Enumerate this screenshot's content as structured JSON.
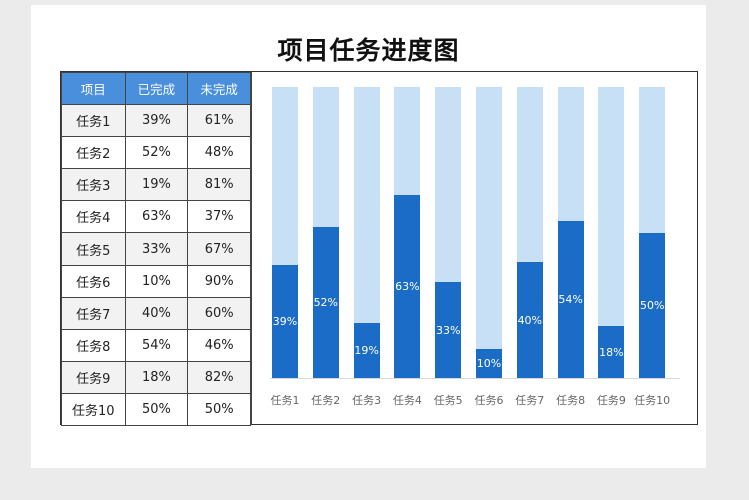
{
  "title": "项目任务进度图",
  "table": {
    "headers": [
      "项目",
      "已完成",
      "未完成"
    ],
    "rows": [
      [
        "任务1",
        "39%",
        "61%"
      ],
      [
        "任务2",
        "52%",
        "48%"
      ],
      [
        "任务3",
        "19%",
        "81%"
      ],
      [
        "任务4",
        "63%",
        "37%"
      ],
      [
        "任务5",
        "33%",
        "67%"
      ],
      [
        "任务6",
        "10%",
        "90%"
      ],
      [
        "任务7",
        "40%",
        "60%"
      ],
      [
        "任务8",
        "54%",
        "46%"
      ],
      [
        "任务9",
        "18%",
        "82%"
      ],
      [
        "任务10",
        "50%",
        "50%"
      ]
    ]
  },
  "colors": {
    "header_bg": "#4a8fdc",
    "completed": "#1a6cc6",
    "remaining": "#c8e0f6"
  },
  "chart_data": {
    "type": "bar",
    "stacked": true,
    "title": "项目任务进度图",
    "categories": [
      "任务1",
      "任务2",
      "任务3",
      "任务4",
      "任务5",
      "任务6",
      "任务7",
      "任务8",
      "任务9",
      "任务10"
    ],
    "series": [
      {
        "name": "已完成",
        "values": [
          39,
          52,
          19,
          63,
          33,
          10,
          40,
          54,
          18,
          50
        ],
        "color": "#1a6cc6"
      },
      {
        "name": "未完成",
        "values": [
          61,
          48,
          81,
          37,
          67,
          90,
          60,
          46,
          82,
          50
        ],
        "color": "#c8e0f6"
      }
    ],
    "data_labels": [
      "39%",
      "52%",
      "19%",
      "63%",
      "33%",
      "10%",
      "40%",
      "54%",
      "18%",
      "50%"
    ],
    "xlabel": "",
    "ylabel": "",
    "ylim": [
      0,
      100
    ],
    "grid": false,
    "legend": "none"
  }
}
